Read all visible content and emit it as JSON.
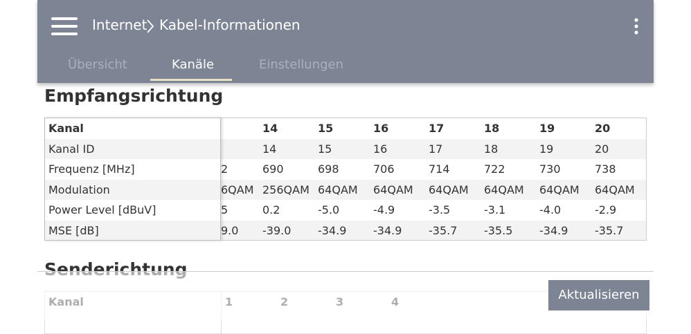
{
  "header": {
    "breadcrumb": [
      "Internet",
      "Kabel-Informationen"
    ]
  },
  "tabs": [
    {
      "label": "Übersicht"
    },
    {
      "label": "Kanäle",
      "active": true
    },
    {
      "label": "Einstellungen"
    }
  ],
  "downstream": {
    "title": "Empfangsrichtung",
    "columns": [
      "Kanal",
      "14",
      "15",
      "16",
      "17",
      "18",
      "19",
      "20"
    ],
    "rows": [
      {
        "label": "Kanal ID",
        "cells": [
          "14",
          "15",
          "16",
          "17",
          "18",
          "19",
          "20"
        ]
      },
      {
        "label": "Frequenz [MHz]",
        "clipped": "2",
        "cells": [
          "690",
          "698",
          "706",
          "714",
          "722",
          "730",
          "738"
        ]
      },
      {
        "label": "Modulation",
        "clipped": "6QAM",
        "cells": [
          "256QAM",
          "64QAM",
          "64QAM",
          "64QAM",
          "64QAM",
          "64QAM",
          "64QAM"
        ]
      },
      {
        "label": "Power Level [dBuV]",
        "clipped": "5",
        "cells": [
          "0.2",
          "-5.0",
          "-4.9",
          "-3.5",
          "-3.1",
          "-4.0",
          "-2.9"
        ]
      },
      {
        "label": "MSE [dB]",
        "clipped": "9.0",
        "cells": [
          "-39.0",
          "-34.9",
          "-34.9",
          "-35.7",
          "-35.5",
          "-34.9",
          "-35.7"
        ]
      }
    ]
  },
  "upstream": {
    "title": "Senderichtung",
    "columns": [
      "Kanal",
      "1",
      "2",
      "3",
      "4"
    ]
  },
  "button": "Aktualisieren"
}
